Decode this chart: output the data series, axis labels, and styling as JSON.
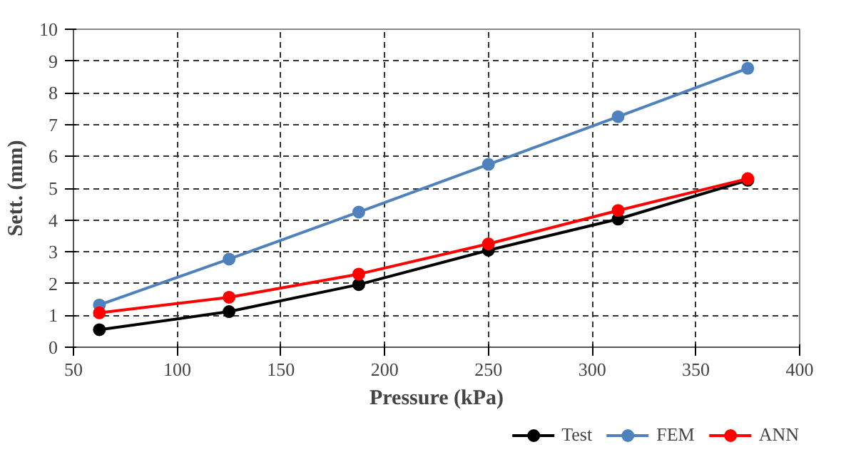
{
  "chart_data": {
    "type": "line",
    "xlabel": "Pressure (kPa)",
    "ylabel": "Sett. (mm)",
    "x": [
      62.5,
      125,
      187.5,
      250,
      312.5,
      375
    ],
    "series": [
      {
        "name": "Test",
        "color": "#000000",
        "values": [
          0.55,
          1.12,
          1.97,
          3.05,
          4.03,
          5.25
        ]
      },
      {
        "name": "FEM",
        "color": "#4f81bd",
        "values": [
          1.33,
          2.77,
          4.25,
          5.75,
          7.25,
          8.77
        ]
      },
      {
        "name": "ANN",
        "color": "#ff0000",
        "values": [
          1.08,
          1.57,
          2.3,
          3.25,
          4.3,
          5.3
        ]
      }
    ],
    "xlim": [
      50,
      400
    ],
    "xticks": [
      50,
      100,
      150,
      200,
      250,
      300,
      350,
      400
    ],
    "ylim": [
      0,
      10
    ],
    "yticks": [
      0,
      1,
      2,
      3,
      4,
      5,
      6,
      7,
      8,
      9,
      10
    ],
    "grid": true,
    "legend": "bottom right",
    "marker": "circle",
    "line_style": "solid"
  }
}
